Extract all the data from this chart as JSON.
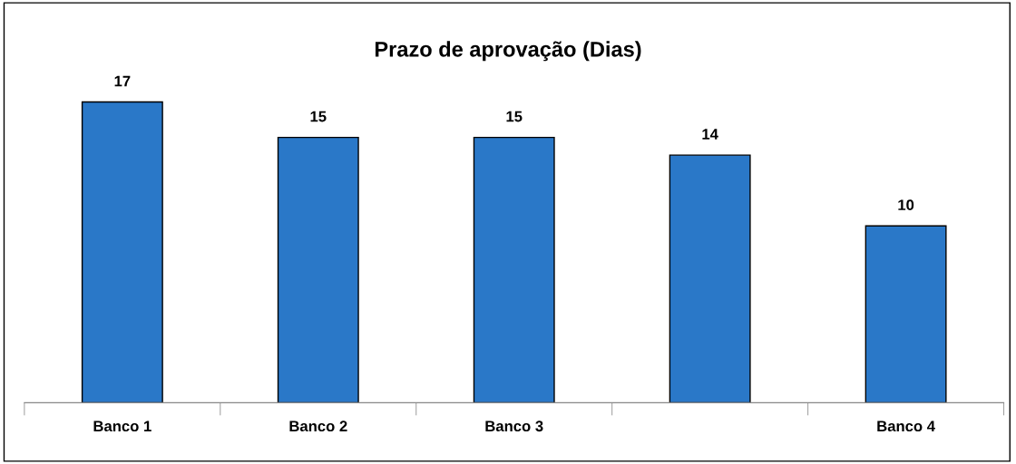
{
  "chart_data": {
    "type": "bar",
    "title": "Prazo de aprovação (Dias)",
    "categories": [
      "Banco 1",
      "Banco 2",
      "Banco 3",
      null,
      "Banco 4"
    ],
    "values": [
      17,
      15,
      15,
      14,
      10
    ],
    "color": "#2a78c8",
    "data_labels": true,
    "grid": false,
    "legend": false
  }
}
